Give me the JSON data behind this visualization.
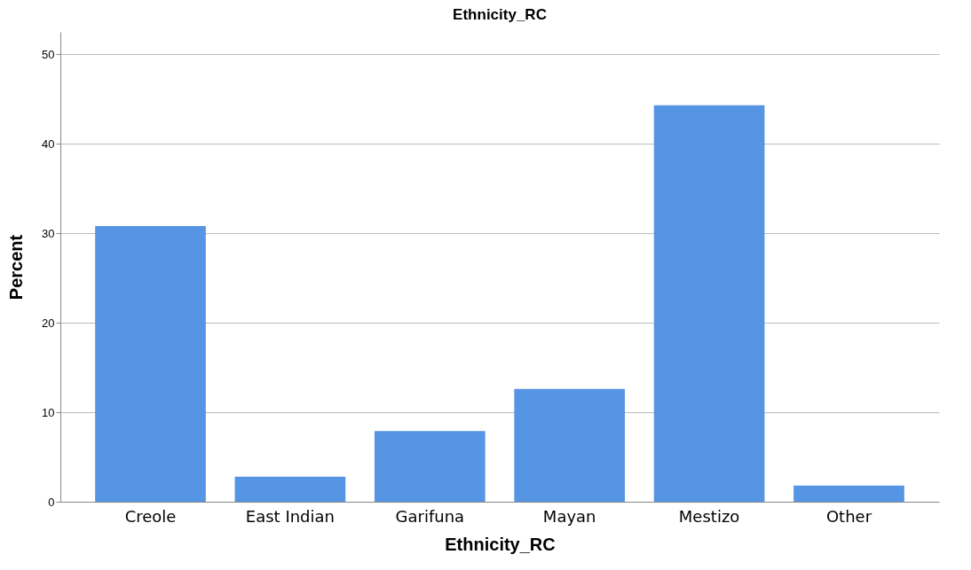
{
  "chart_data": {
    "type": "bar",
    "title": "Ethnicity_RC",
    "xlabel": "Ethnicity_RC",
    "ylabel": "Percent",
    "categories": [
      "Creole",
      "East Indian",
      "Garifuna",
      "Mayan",
      "Mestizo",
      "Other"
    ],
    "values": [
      30.8,
      2.8,
      7.9,
      12.6,
      44.3,
      1.8
    ],
    "color": "#5595e3",
    "ylim": [
      0,
      52.5
    ],
    "yticks": [
      0,
      10,
      20,
      30,
      40,
      50
    ],
    "grid": "y"
  }
}
